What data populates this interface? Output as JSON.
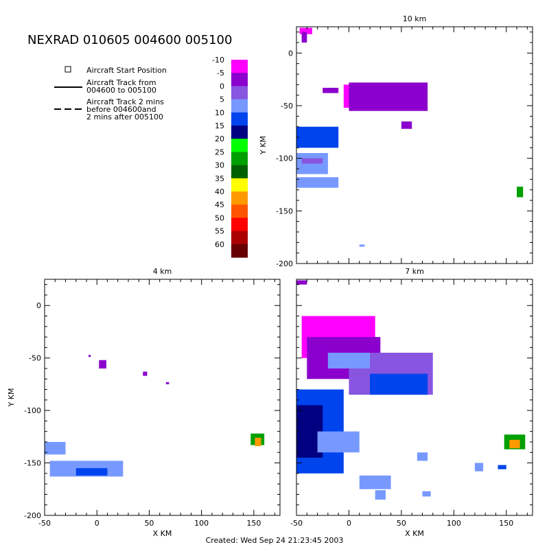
{
  "header": {
    "title": "NEXRAD 010605 004600 005100",
    "footer": "Created: Wed Sep 24 21:23:45 2003"
  },
  "legend": {
    "items": [
      {
        "label": "Aircraft Start Position",
        "symbol": "square"
      },
      {
        "label": "Aircraft Track from 004600 to 005100",
        "lines": [
          "Aircraft Track from",
          "004600 to 005100"
        ],
        "symbol": "solid"
      },
      {
        "label": "Aircraft Track 2 mins before 004600and 2 mins after 005100",
        "lines": [
          "Aircraft Track 2 mins",
          "before 004600and",
          "2 mins after 005100"
        ],
        "symbol": "dashed"
      }
    ]
  },
  "colorbar": {
    "labels": [
      "-10",
      "-5",
      "0",
      "5",
      "10",
      "15",
      "20",
      "25",
      "30",
      "35",
      "40",
      "45",
      "50",
      "55",
      "60"
    ],
    "colors": [
      "#ff00ff",
      "#8b00cc",
      "#8855e0",
      "#7799ff",
      "#0044ee",
      "#000080",
      "#00ff00",
      "#00a000",
      "#006000",
      "#ffff00",
      "#ff9900",
      "#ff5500",
      "#ff0000",
      "#aa0000",
      "#660000"
    ]
  },
  "chart_data": [
    {
      "type": "heatmap",
      "title": "10 km",
      "xlabel": "",
      "ylabel": "Y KM",
      "xlim": [
        -50,
        175
      ],
      "ylim": [
        -200,
        25
      ],
      "xticks": [],
      "yticks": [
        "0",
        "-50",
        "-100",
        "-150",
        "-200"
      ],
      "echoes": [
        {
          "x0": -47,
          "x1": -35,
          "y0": 24,
          "y1": 18,
          "color": "#ff00ff"
        },
        {
          "x0": -45,
          "x1": -40,
          "y0": 20,
          "y1": 10,
          "color": "#8b00cc"
        },
        {
          "x0": -5,
          "x1": 35,
          "y0": -30,
          "y1": -52,
          "color": "#ff00ff"
        },
        {
          "x0": 0,
          "x1": 75,
          "y0": -28,
          "y1": -55,
          "color": "#8b00cc"
        },
        {
          "x0": -25,
          "x1": -10,
          "y0": -33,
          "y1": -38,
          "color": "#8b00cc"
        },
        {
          "x0": 50,
          "x1": 60,
          "y0": -65,
          "y1": -72,
          "color": "#8b00cc"
        },
        {
          "x0": -50,
          "x1": -10,
          "y0": -70,
          "y1": -90,
          "color": "#0044ee"
        },
        {
          "x0": -50,
          "x1": -20,
          "y0": -95,
          "y1": -115,
          "color": "#7799ff"
        },
        {
          "x0": -45,
          "x1": -25,
          "y0": -100,
          "y1": -105,
          "color": "#8855e0"
        },
        {
          "x0": -50,
          "x1": -10,
          "y0": -118,
          "y1": -128,
          "color": "#7799ff"
        },
        {
          "x0": 10,
          "x1": 15,
          "y0": -182,
          "y1": -184,
          "color": "#7799ff"
        },
        {
          "x0": 160,
          "x1": 166,
          "y0": -127,
          "y1": -137,
          "color": "#00a000"
        }
      ]
    },
    {
      "type": "heatmap",
      "title": "4 km",
      "xlabel": "X KM",
      "ylabel": "Y KM",
      "xlim": [
        -50,
        175
      ],
      "ylim": [
        -200,
        25
      ],
      "xticks": [
        "-50",
        "0",
        "50",
        "100",
        "150"
      ],
      "yticks": [
        "0",
        "-50",
        "-100",
        "-150",
        "-200"
      ],
      "echoes": [
        {
          "x0": -8,
          "x1": -6,
          "y0": -47,
          "y1": -49,
          "color": "#8b00cc"
        },
        {
          "x0": 2,
          "x1": 9,
          "y0": -52,
          "y1": -60,
          "color": "#8b00cc"
        },
        {
          "x0": 44,
          "x1": 48,
          "y0": -63,
          "y1": -67,
          "color": "#8b00cc"
        },
        {
          "x0": 66,
          "x1": 69,
          "y0": -73,
          "y1": -75,
          "color": "#8b00cc"
        },
        {
          "x0": -50,
          "x1": -30,
          "y0": -130,
          "y1": -142,
          "color": "#7799ff"
        },
        {
          "x0": -45,
          "x1": 25,
          "y0": -148,
          "y1": -163,
          "color": "#7799ff"
        },
        {
          "x0": -20,
          "x1": 10,
          "y0": -155,
          "y1": -162,
          "color": "#0044ee"
        },
        {
          "x0": 147,
          "x1": 160,
          "y0": -122,
          "y1": -133,
          "color": "#00a000"
        },
        {
          "x0": 151,
          "x1": 157,
          "y0": -126,
          "y1": -134,
          "color": "#ff9900"
        }
      ]
    },
    {
      "type": "heatmap",
      "title": "7 km",
      "xlabel": "X KM",
      "ylabel": "",
      "xlim": [
        -50,
        175
      ],
      "ylim": [
        -200,
        25
      ],
      "xticks": [
        "-50",
        "0",
        "50",
        "100",
        "150"
      ],
      "yticks": [],
      "echoes": [
        {
          "x0": -50,
          "x1": -40,
          "y0": 24,
          "y1": 20,
          "color": "#8b00cc"
        },
        {
          "x0": -45,
          "x1": 25,
          "y0": -10,
          "y1": -50,
          "color": "#ff00ff"
        },
        {
          "x0": -40,
          "x1": 30,
          "y0": -30,
          "y1": -70,
          "color": "#8b00cc"
        },
        {
          "x0": 0,
          "x1": 80,
          "y0": -45,
          "y1": -85,
          "color": "#8855e0"
        },
        {
          "x0": 20,
          "x1": 75,
          "y0": -65,
          "y1": -85,
          "color": "#0044ee"
        },
        {
          "x0": -20,
          "x1": 20,
          "y0": -45,
          "y1": -60,
          "color": "#7799ff"
        },
        {
          "x0": -50,
          "x1": -5,
          "y0": -80,
          "y1": -160,
          "color": "#0044ee"
        },
        {
          "x0": -50,
          "x1": -25,
          "y0": -95,
          "y1": -145,
          "color": "#000080"
        },
        {
          "x0": -30,
          "x1": 10,
          "y0": -120,
          "y1": -140,
          "color": "#7799ff"
        },
        {
          "x0": 10,
          "x1": 40,
          "y0": -162,
          "y1": -175,
          "color": "#7799ff"
        },
        {
          "x0": 25,
          "x1": 35,
          "y0": -176,
          "y1": -185,
          "color": "#7799ff"
        },
        {
          "x0": 70,
          "x1": 78,
          "y0": -177,
          "y1": -182,
          "color": "#7799ff"
        },
        {
          "x0": 65,
          "x1": 75,
          "y0": -140,
          "y1": -148,
          "color": "#7799ff"
        },
        {
          "x0": 120,
          "x1": 128,
          "y0": -150,
          "y1": -158,
          "color": "#7799ff"
        },
        {
          "x0": 148,
          "x1": 168,
          "y0": -123,
          "y1": -137,
          "color": "#00a000"
        },
        {
          "x0": 153,
          "x1": 163,
          "y0": -128,
          "y1": -136,
          "color": "#ff9900"
        },
        {
          "x0": 142,
          "x1": 150,
          "y0": -152,
          "y1": -156,
          "color": "#0044ee"
        }
      ]
    }
  ]
}
